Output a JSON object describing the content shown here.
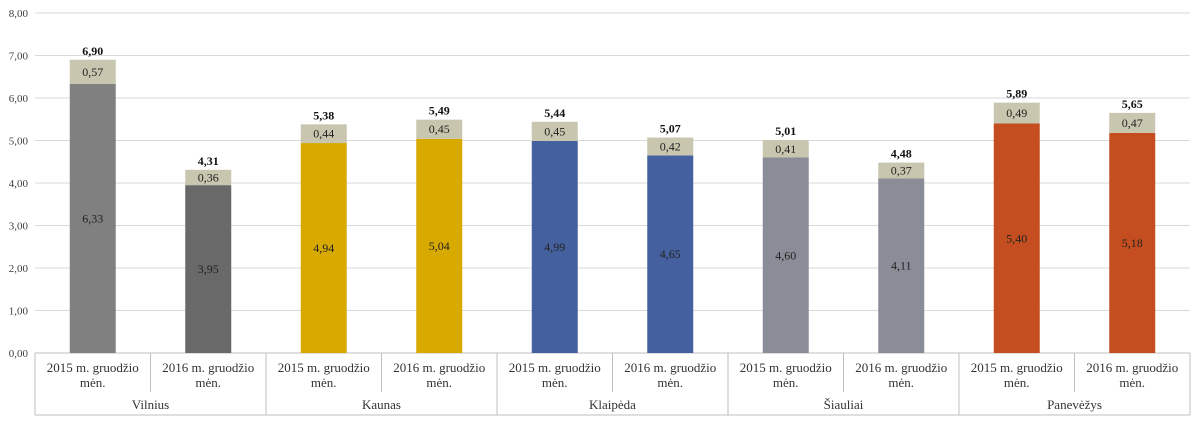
{
  "chart_data": {
    "type": "bar",
    "stacked": true,
    "title": "",
    "xlabel": "",
    "ylabel": "",
    "ylim": [
      0,
      8
    ],
    "yticks": [
      "0,00",
      "1,00",
      "2,00",
      "3,00",
      "4,00",
      "5,00",
      "6,00",
      "7,00",
      "8,00"
    ],
    "grid": true,
    "groups": [
      {
        "name": "Vilnius",
        "bars": [
          {
            "label_line1": "2015 m. gruodžio",
            "label_line2": "mėn.",
            "base": 6.33,
            "top": 0.57,
            "total": 6.9,
            "base_label": "6,33",
            "top_label": "0,57",
            "total_label": "6,90",
            "color": "#808080"
          },
          {
            "label_line1": "2016 m. gruodžio",
            "label_line2": "mėn.",
            "base": 3.95,
            "top": 0.36,
            "total": 4.31,
            "base_label": "3,95",
            "top_label": "0,36",
            "total_label": "4,31",
            "color": "#696969"
          }
        ]
      },
      {
        "name": "Kaunas",
        "bars": [
          {
            "label_line1": "2015 m. gruodžio",
            "label_line2": "mėn.",
            "base": 4.94,
            "top": 0.44,
            "total": 5.38,
            "base_label": "4,94",
            "top_label": "0,44",
            "total_label": "5,38",
            "color": "#D8AA00"
          },
          {
            "label_line1": "2016 m. gruodžio",
            "label_line2": "mėn.",
            "base": 5.04,
            "top": 0.45,
            "total": 5.49,
            "base_label": "5,04",
            "top_label": "0,45",
            "total_label": "5,49",
            "color": "#D8AA00"
          }
        ]
      },
      {
        "name": "Klaipėda",
        "bars": [
          {
            "label_line1": "2015 m. gruodžio",
            "label_line2": "mėn.",
            "base": 4.99,
            "top": 0.45,
            "total": 5.44,
            "base_label": "4,99",
            "top_label": "0,45",
            "total_label": "5,44",
            "color": "#45609E"
          },
          {
            "label_line1": "2016 m. gruodžio",
            "label_line2": "mėn.",
            "base": 4.65,
            "top": 0.42,
            "total": 5.07,
            "base_label": "4,65",
            "top_label": "0,42",
            "total_label": "5,07",
            "color": "#45609E"
          }
        ]
      },
      {
        "name": "Šiauliai",
        "bars": [
          {
            "label_line1": "2015 m. gruodžio",
            "label_line2": "mėn.",
            "base": 4.6,
            "top": 0.41,
            "total": 5.01,
            "base_label": "4,60",
            "top_label": "0,41",
            "total_label": "5,01",
            "color": "#8A8C98"
          },
          {
            "label_line1": "2016 m. gruodžio",
            "label_line2": "mėn.",
            "base": 4.11,
            "top": 0.37,
            "total": 4.48,
            "base_label": "4,11",
            "top_label": "0,37",
            "total_label": "4,48",
            "color": "#8A8C98"
          }
        ]
      },
      {
        "name": "Panevėžys",
        "bars": [
          {
            "label_line1": "2015 m. gruodžio",
            "label_line2": "mėn.",
            "base": 5.4,
            "top": 0.49,
            "total": 5.89,
            "base_label": "5,40",
            "top_label": "0,49",
            "total_label": "5,89",
            "color": "#C44E20"
          },
          {
            "label_line1": "2016 m. gruodžio",
            "label_line2": "mėn.",
            "base": 5.18,
            "top": 0.47,
            "total": 5.65,
            "base_label": "5,18",
            "top_label": "0,47",
            "total_label": "5,65",
            "color": "#C44E20"
          }
        ]
      }
    ],
    "colors": {
      "top_segment": "#C8C6AE",
      "grid": "#D9D9D9",
      "axis": "#BFBFBF"
    }
  }
}
